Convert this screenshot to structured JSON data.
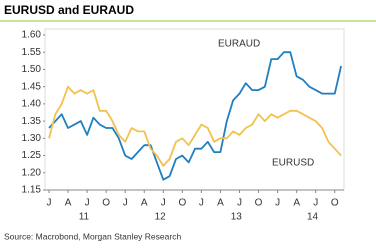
{
  "chart_data": {
    "type": "line",
    "title": "EURUSD and EURAUD",
    "source": "Source: Macrobond, Morgan Stanley Research",
    "categories": [
      "J",
      null,
      null,
      "A",
      null,
      null,
      "J",
      null,
      null,
      "O",
      null,
      null,
      "J",
      null,
      null,
      "A",
      null,
      null,
      "J",
      null,
      null,
      "O",
      null,
      null,
      "J",
      null,
      null,
      "A",
      null,
      null,
      "J",
      null,
      null,
      "O",
      null,
      null,
      "J",
      null,
      null,
      "A",
      null,
      null,
      "J",
      null,
      null,
      "O",
      null
    ],
    "year_labels": [
      "11",
      "12",
      "13",
      "14"
    ],
    "series": [
      {
        "name": "EURAUD",
        "color": "#1f7fc0",
        "values": [
          1.33,
          1.35,
          1.37,
          1.33,
          1.34,
          1.35,
          1.31,
          1.36,
          1.34,
          1.33,
          1.33,
          1.3,
          1.25,
          1.24,
          1.26,
          1.28,
          1.28,
          1.23,
          1.18,
          1.19,
          1.24,
          1.25,
          1.23,
          1.27,
          1.27,
          1.29,
          1.26,
          1.26,
          1.35,
          1.41,
          1.43,
          1.46,
          1.44,
          1.44,
          1.45,
          1.53,
          1.53,
          1.55,
          1.55,
          1.48,
          1.47,
          1.45,
          1.44,
          1.43,
          1.43,
          1.43,
          1.51
        ]
      },
      {
        "name": "EURUSD",
        "color": "#f2c14e",
        "values": [
          1.3,
          1.37,
          1.4,
          1.45,
          1.43,
          1.44,
          1.43,
          1.44,
          1.38,
          1.38,
          1.35,
          1.31,
          1.29,
          1.33,
          1.32,
          1.32,
          1.27,
          1.25,
          1.22,
          1.24,
          1.29,
          1.3,
          1.28,
          1.31,
          1.34,
          1.33,
          1.29,
          1.3,
          1.3,
          1.32,
          1.31,
          1.33,
          1.34,
          1.37,
          1.35,
          1.37,
          1.36,
          1.37,
          1.38,
          1.38,
          1.37,
          1.36,
          1.35,
          1.33,
          1.29,
          1.27,
          1.25
        ]
      }
    ],
    "ylim": [
      1.15,
      1.6
    ],
    "yticks": [
      1.15,
      {
        "value": 1.2,
        "label": "1.20"
      },
      1.25,
      {
        "value": 1.3,
        "label": "1.30"
      },
      1.35,
      {
        "value": 1.4,
        "label": "1.40"
      },
      1.45,
      {
        "value": 1.5,
        "label": "1.50"
      },
      1.55,
      {
        "value": 1.6,
        "label": "1.60"
      }
    ]
  }
}
